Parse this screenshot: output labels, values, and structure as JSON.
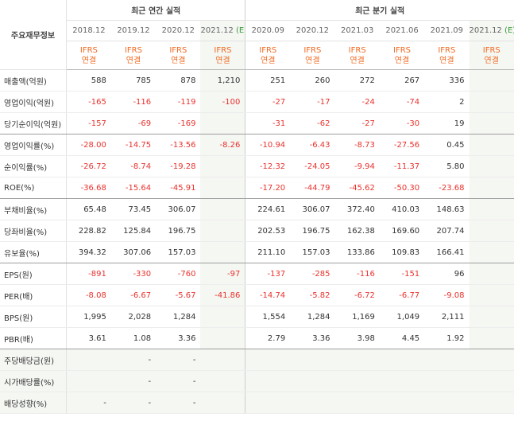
{
  "header": {
    "label_column": "주요재무정보",
    "annual_group": "최근 연간 실적",
    "quarterly_group": "최근 분기 실적",
    "periods": [
      {
        "date": "2018.12",
        "estimate_mark": ""
      },
      {
        "date": "2019.12",
        "estimate_mark": ""
      },
      {
        "date": "2020.12",
        "estimate_mark": ""
      },
      {
        "date": "2021.12",
        "estimate_mark": "(E)"
      },
      {
        "date": "2020.09",
        "estimate_mark": ""
      },
      {
        "date": "2020.12",
        "estimate_mark": ""
      },
      {
        "date": "2021.03",
        "estimate_mark": ""
      },
      {
        "date": "2021.06",
        "estimate_mark": ""
      },
      {
        "date": "2021.09",
        "estimate_mark": ""
      },
      {
        "date": "2021.12",
        "estimate_mark": "(E)"
      }
    ],
    "standard_line1": "IFRS",
    "standard_line2": "연결"
  },
  "rows": [
    {
      "label": "매출액(억원)",
      "values": [
        "588",
        "785",
        "878",
        "1,210",
        "251",
        "260",
        "272",
        "267",
        "336",
        ""
      ]
    },
    {
      "label": "영업이익(억원)",
      "values": [
        "-165",
        "-116",
        "-119",
        "-100",
        "-27",
        "-17",
        "-24",
        "-74",
        "2",
        ""
      ]
    },
    {
      "label": "당기순이익(억원)",
      "values": [
        "-157",
        "-69",
        "-169",
        "",
        "-31",
        "-62",
        "-27",
        "-30",
        "19",
        ""
      ]
    },
    {
      "label": "영업이익률(%)",
      "values": [
        "-28.00",
        "-14.75",
        "-13.56",
        "-8.26",
        "-10.94",
        "-6.43",
        "-8.73",
        "-27.56",
        "0.45",
        ""
      ]
    },
    {
      "label": "순이익률(%)",
      "values": [
        "-26.72",
        "-8.74",
        "-19.28",
        "",
        "-12.32",
        "-24.05",
        "-9.94",
        "-11.37",
        "5.80",
        ""
      ]
    },
    {
      "label": "ROE(%)",
      "values": [
        "-36.68",
        "-15.64",
        "-45.91",
        "",
        "-17.20",
        "-44.79",
        "-45.62",
        "-50.30",
        "-23.68",
        ""
      ]
    },
    {
      "label": "부채비율(%)",
      "values": [
        "65.48",
        "73.45",
        "306.07",
        "",
        "224.61",
        "306.07",
        "372.40",
        "410.03",
        "148.63",
        ""
      ]
    },
    {
      "label": "당좌비율(%)",
      "values": [
        "228.82",
        "125.84",
        "196.75",
        "",
        "202.53",
        "196.75",
        "162.38",
        "169.60",
        "207.74",
        ""
      ]
    },
    {
      "label": "유보율(%)",
      "values": [
        "394.32",
        "307.06",
        "157.03",
        "",
        "211.10",
        "157.03",
        "133.86",
        "109.83",
        "166.41",
        ""
      ]
    },
    {
      "label": "EPS(원)",
      "values": [
        "-891",
        "-330",
        "-760",
        "-97",
        "-137",
        "-285",
        "-116",
        "-151",
        "96",
        ""
      ]
    },
    {
      "label": "PER(배)",
      "values": [
        "-8.08",
        "-6.67",
        "-5.67",
        "-41.86",
        "-14.74",
        "-5.82",
        "-6.72",
        "-6.77",
        "-9.08",
        ""
      ]
    },
    {
      "label": "BPS(원)",
      "values": [
        "1,995",
        "2,028",
        "1,284",
        "",
        "1,554",
        "1,284",
        "1,169",
        "1,049",
        "2,111",
        ""
      ]
    },
    {
      "label": "PBR(배)",
      "values": [
        "3.61",
        "1.08",
        "3.36",
        "",
        "2.79",
        "3.36",
        "3.98",
        "4.45",
        "1.92",
        ""
      ]
    },
    {
      "label": "주당배당금(원)",
      "values": [
        "",
        "-",
        "-",
        "",
        "",
        "",
        "",
        "",
        "",
        ""
      ]
    },
    {
      "label": "시가배당률(%)",
      "values": [
        "",
        "-",
        "-",
        "",
        "",
        "",
        "",
        "",
        "",
        ""
      ]
    },
    {
      "label": "배당성향(%)",
      "values": [
        "-",
        "-",
        "-",
        "",
        "",
        "",
        "",
        "",
        "",
        ""
      ]
    }
  ],
  "colors": {
    "negative": "#e8322d",
    "accounting_standard": "#f26a21",
    "estimate_mark": "#3a9a3a",
    "estimate_bg": "#f5f7f3",
    "shaded_rows_bg": "#f5f7f3"
  }
}
